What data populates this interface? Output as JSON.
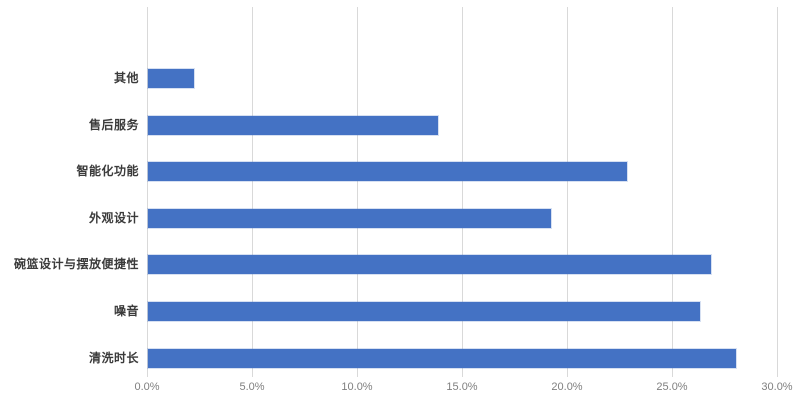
{
  "chart_data": {
    "type": "bar",
    "orientation": "horizontal",
    "order": "top-to-bottom",
    "title": "",
    "xlabel": "",
    "ylabel": "",
    "unit": "%",
    "categories": [
      "其他",
      "售后服务",
      "智能化功能",
      "外观设计",
      "碗篮设计与摆放便捷性",
      "噪音",
      "清洗时长"
    ],
    "values": [
      2.2,
      13.8,
      22.8,
      19.2,
      26.8,
      26.3,
      28.0
    ],
    "xlim": [
      0,
      30
    ],
    "x_tick_values": [
      0,
      5,
      10,
      15,
      20,
      25,
      30
    ],
    "x_tick_labels": [
      "0.0%",
      "5.0%",
      "10.0%",
      "15.0%",
      "20.0%",
      "25.0%",
      "30.0%"
    ],
    "grid": true,
    "legend": false,
    "colors": {
      "bar": "#4472c4",
      "gridline": "#d9d9d9",
      "category_label": "#3b3b3b",
      "tick_label": "#7f7f7f",
      "background": "#ffffff"
    }
  }
}
